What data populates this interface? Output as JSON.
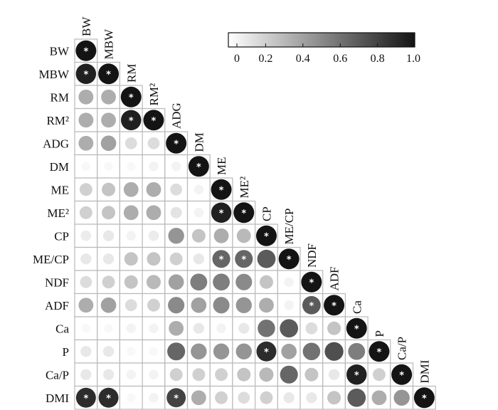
{
  "chart_data": {
    "type": "heatmap",
    "style": "lower-triangle correlation circles",
    "variables": [
      "BW",
      "MBW",
      "RM",
      "RM²",
      "ADG",
      "DM",
      "ME",
      "ME²",
      "CP",
      "ME/CP",
      "NDF",
      "ADF",
      "Ca",
      "P",
      "Ca/P",
      "DMI"
    ],
    "colorbar": {
      "min": 0,
      "max": 1.0,
      "ticks": [
        "0",
        "0.2",
        "0.4",
        "0.6",
        "0.8",
        "1.0"
      ],
      "low_color": "#ffffff",
      "high_color": "#141414"
    },
    "significance_marker": "*",
    "correlations": [
      [
        1.0
      ],
      [
        0.95,
        1.0
      ],
      [
        0.35,
        0.35,
        1.0
      ],
      [
        0.35,
        0.35,
        0.95,
        1.0
      ],
      [
        0.35,
        0.4,
        0.15,
        0.15,
        1.0
      ],
      [
        0.03,
        0.03,
        0.03,
        0.05,
        0.05,
        1.0
      ],
      [
        0.2,
        0.25,
        0.35,
        0.35,
        0.15,
        0.05,
        1.0
      ],
      [
        0.2,
        0.25,
        0.35,
        0.35,
        0.12,
        0.05,
        0.95,
        1.0
      ],
      [
        0.08,
        0.1,
        0.05,
        0.08,
        0.45,
        0.25,
        0.35,
        0.3,
        1.0
      ],
      [
        0.1,
        0.1,
        0.25,
        0.25,
        0.2,
        0.1,
        0.65,
        0.65,
        0.7,
        1.0
      ],
      [
        0.15,
        0.2,
        0.25,
        0.3,
        0.4,
        0.55,
        0.55,
        0.5,
        0.25,
        0.05,
        1.0
      ],
      [
        0.35,
        0.4,
        0.15,
        0.2,
        0.5,
        0.4,
        0.5,
        0.45,
        0.35,
        0.05,
        0.7,
        1.0
      ],
      [
        0.03,
        0.03,
        0.05,
        0.05,
        0.35,
        0.1,
        0.05,
        0.1,
        0.6,
        0.7,
        0.15,
        0.25,
        1.0
      ],
      [
        0.1,
        0.1,
        0.03,
        0.03,
        0.65,
        0.45,
        0.45,
        0.45,
        0.9,
        0.4,
        0.6,
        0.75,
        0.55,
        1.0
      ],
      [
        0.1,
        0.1,
        0.05,
        0.05,
        0.2,
        0.2,
        0.2,
        0.25,
        0.3,
        0.65,
        0.25,
        0.1,
        0.95,
        0.2,
        1.0
      ],
      [
        0.9,
        0.9,
        0.03,
        0.05,
        0.8,
        0.35,
        0.2,
        0.15,
        0.2,
        0.1,
        0.1,
        0.25,
        0.7,
        0.35,
        0.45,
        1.0
      ]
    ],
    "significant": [
      [
        0,
        0
      ],
      [
        1,
        0
      ],
      [
        1,
        1
      ],
      [
        2,
        2
      ],
      [
        3,
        2
      ],
      [
        3,
        3
      ],
      [
        4,
        4
      ],
      [
        5,
        5
      ],
      [
        6,
        6
      ],
      [
        7,
        6
      ],
      [
        7,
        7
      ],
      [
        8,
        8
      ],
      [
        9,
        6
      ],
      [
        9,
        7
      ],
      [
        9,
        9
      ],
      [
        10,
        10
      ],
      [
        11,
        10
      ],
      [
        11,
        11
      ],
      [
        12,
        12
      ],
      [
        13,
        8
      ],
      [
        13,
        13
      ],
      [
        14,
        12
      ],
      [
        14,
        14
      ],
      [
        15,
        0
      ],
      [
        15,
        1
      ],
      [
        15,
        4
      ],
      [
        15,
        15
      ]
    ]
  }
}
